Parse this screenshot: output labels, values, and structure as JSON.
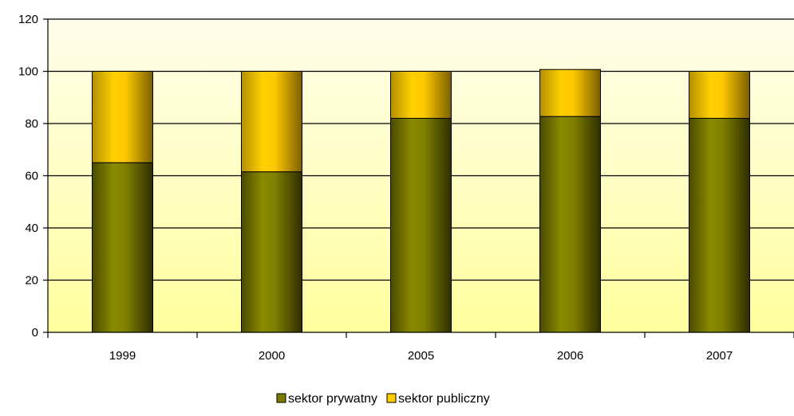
{
  "chart_data": {
    "type": "bar",
    "stacked": true,
    "categories": [
      "1999",
      "2000",
      "2005",
      "2006",
      "2007"
    ],
    "series": [
      {
        "name": "sektor prywatny",
        "values": [
          65,
          61.5,
          82,
          82.7,
          82
        ],
        "color": "#7a7a00"
      },
      {
        "name": "sektor publiczny",
        "values": [
          35,
          38.5,
          18,
          18,
          18
        ],
        "color": "#ffcc00"
      }
    ],
    "ylim": [
      0,
      120
    ],
    "yticks": [
      0,
      20,
      40,
      60,
      80,
      100,
      120
    ],
    "xlabel": "",
    "ylabel": "",
    "title": "",
    "grid": true,
    "legend_position": "bottom",
    "background_gradient": [
      "#fffde8",
      "#ffffa0"
    ]
  }
}
